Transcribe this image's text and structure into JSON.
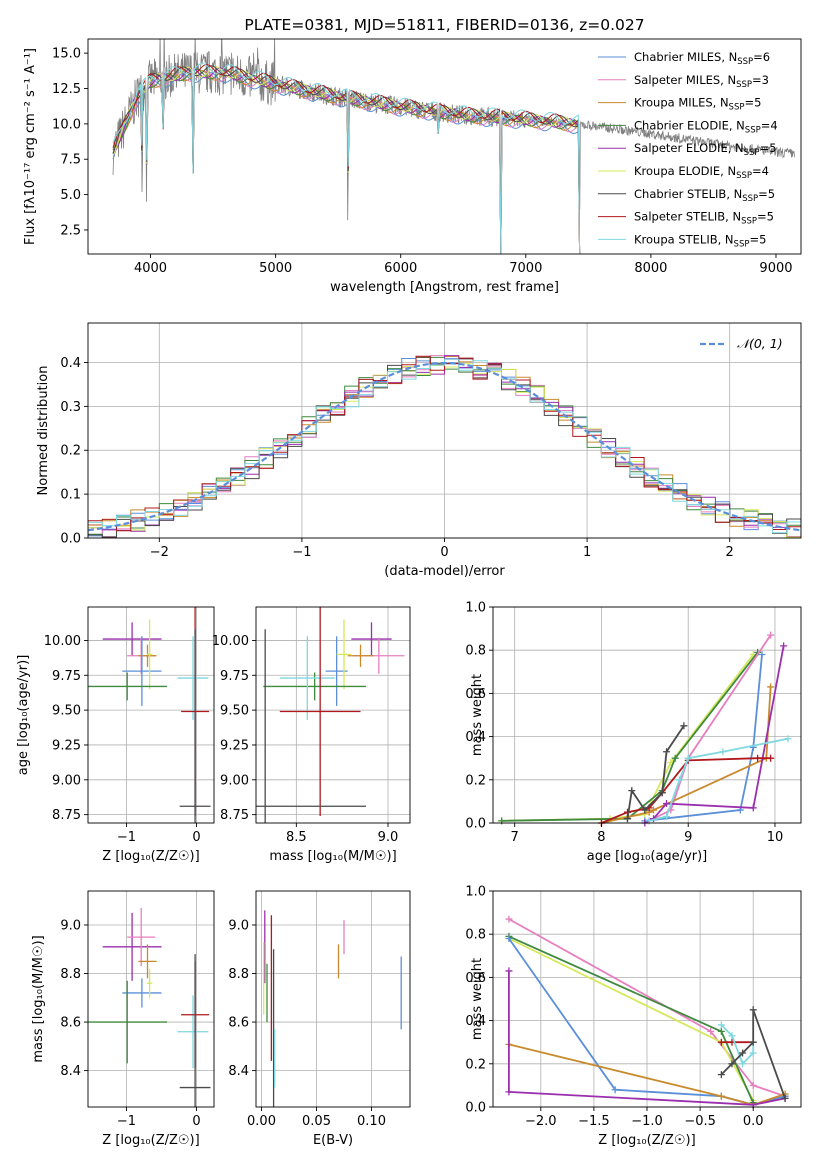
{
  "colors": {
    "Chabrier MILES": "#5b8fd9",
    "Salpeter MILES": "#e67fc0",
    "Kroupa MILES": "#c88a2c",
    "Chabrier ELODIE": "#3f8a3f",
    "Salpeter ELODIE": "#9b2fae",
    "Kroupa ELODIE": "#d6e85a",
    "Chabrier STELIB": "#4a4a4a",
    "Salpeter STELIB": "#b0181e",
    "Kroupa STELIB": "#7fd8e0",
    "observed": "#808080",
    "normal": "#5b8fd9"
  },
  "chart_data": [
    {
      "type": "line",
      "title": "PLATE=0381, MJD=51811, FIBERID=0136, z=0.027",
      "xlabel": "wavelength [Angstrom, rest frame]",
      "ylabel": "Flux [fλ10⁻¹⁷ erg cm⁻² s⁻¹ A⁻¹]",
      "xlim": [
        3500,
        9200
      ],
      "ylim": [
        0.8,
        16
      ],
      "xticks": [
        "4000",
        "5000",
        "6000",
        "7000",
        "8000",
        "9000"
      ],
      "yticks": [
        "2.5",
        "5.0",
        "7.5",
        "10.0",
        "12.5",
        "15.0"
      ],
      "legend_position": "top-right",
      "legend": [
        {
          "label": "Chabrier MILES, N",
          "sub": "SSP",
          "tail": "=6",
          "key": "Chabrier MILES"
        },
        {
          "label": "Salpeter MILES, N",
          "sub": "SSP",
          "tail": "=3",
          "key": "Salpeter MILES"
        },
        {
          "label": "Kroupa MILES, N",
          "sub": "SSP",
          "tail": "=5",
          "key": "Kroupa MILES"
        },
        {
          "label": "Chabrier ELODIE, N",
          "sub": "SSP",
          "tail": "=4",
          "key": "Chabrier ELODIE"
        },
        {
          "label": "Salpeter ELODIE, N",
          "sub": "SSP",
          "tail": "=5",
          "key": "Salpeter ELODIE"
        },
        {
          "label": "Kroupa ELODIE, N",
          "sub": "SSP",
          "tail": "=4",
          "key": "Kroupa ELODIE"
        },
        {
          "label": "Chabrier STELIB, N",
          "sub": "SSP",
          "tail": "=5",
          "key": "Chabrier STELIB"
        },
        {
          "label": "Salpeter STELIB, N",
          "sub": "SSP",
          "tail": "=5",
          "key": "Salpeter STELIB"
        },
        {
          "label": "Kroupa STELIB, N",
          "sub": "SSP",
          "tail": "=5",
          "key": "Kroupa STELIB"
        }
      ],
      "continuum": [
        [
          3700,
          8.0
        ],
        [
          3800,
          10.0
        ],
        [
          3900,
          12.0
        ],
        [
          4000,
          13.0
        ],
        [
          4300,
          13.6
        ],
        [
          4600,
          13.6
        ],
        [
          5000,
          12.8
        ],
        [
          5500,
          11.9
        ],
        [
          6000,
          11.2
        ],
        [
          6500,
          10.6
        ],
        [
          7000,
          10.3
        ],
        [
          7500,
          9.9
        ],
        [
          8000,
          9.3
        ],
        [
          8500,
          8.6
        ],
        [
          9000,
          8.0
        ],
        [
          9150,
          7.9
        ]
      ],
      "model_range": [
        3700,
        7430
      ],
      "dips": [
        {
          "x": 3933,
          "y": 4.0
        },
        {
          "x": 3968,
          "y": 4.5
        },
        {
          "x": 4101,
          "y": 9.0
        },
        {
          "x": 4340,
          "y": 6.5
        },
        {
          "x": 5577,
          "y": 1.5
        },
        {
          "x": 6300,
          "y": 9.3
        },
        {
          "x": 6800,
          "y": 0.8
        },
        {
          "x": 7430,
          "y": 0.8
        }
      ]
    },
    {
      "type": "step",
      "xlabel": "(data-model)/error",
      "ylabel": "Normed distribution",
      "xlim": [
        -2.5,
        2.5
      ],
      "ylim": [
        0,
        0.49
      ],
      "xticks": [
        "-2",
        "-1",
        "0",
        "1",
        "2"
      ],
      "yticks": [
        "0.0",
        "0.1",
        "0.2",
        "0.3",
        "0.4"
      ],
      "legend": "𝒩(0, 1)",
      "legend_position": "top-right",
      "bin_width": 0.1,
      "sigma": 1.0
    },
    {
      "type": "errorbar",
      "xlabel": "Z [log₁₀(Z/Z☉)]",
      "ylabel": "age  [log₁₀(age/yr)]",
      "xlim": [
        -1.55,
        0.25
      ],
      "ylim": [
        8.69,
        10.24
      ],
      "xticks": [
        "-1",
        "0"
      ],
      "yticks": [
        "8.75",
        "9.00",
        "9.25",
        "9.50",
        "9.75",
        "10.00"
      ],
      "points": [
        {
          "key": "Salpeter ELODIE",
          "x": -0.92,
          "xerr": 0.42,
          "y": 10.01,
          "yerr": 0.12
        },
        {
          "key": "Salpeter MILES",
          "x": -0.79,
          "xerr": 0.2,
          "y": 9.89,
          "yerr": 0.13
        },
        {
          "key": "Kroupa MILES",
          "x": -0.7,
          "xerr": 0.13,
          "y": 9.89,
          "yerr": 0.08
        },
        {
          "key": "Chabrier MILES",
          "x": -0.78,
          "xerr": 0.28,
          "y": 9.78,
          "yerr": 0.25
        },
        {
          "key": "Kroupa ELODIE",
          "x": -0.67,
          "xerr": 0.04,
          "y": 9.9,
          "yerr": 0.25
        },
        {
          "key": "Chabrier ELODIE",
          "x": -0.99,
          "xerr": 0.57,
          "y": 9.67,
          "yerr": 0.1
        },
        {
          "key": "Kroupa STELIB",
          "x": -0.05,
          "xerr": 0.22,
          "y": 9.73,
          "yerr": 0.3
        },
        {
          "key": "Salpeter STELIB",
          "x": -0.02,
          "xerr": 0.2,
          "y": 9.49,
          "yerr": 0.75
        },
        {
          "key": "Chabrier STELIB",
          "x": -0.02,
          "xerr": 0.22,
          "y": 8.81,
          "yerr": 1.27
        }
      ]
    },
    {
      "type": "errorbar",
      "xlabel": "mass [log₁₀(M/M☉)]",
      "ylabel": "",
      "xlim": [
        8.28,
        9.12
      ],
      "ylim": [
        8.69,
        10.24
      ],
      "xticks": [
        "8.5",
        "9.0"
      ],
      "yticks": [
        "8.75",
        "9.00",
        "9.25",
        "9.50",
        "9.75",
        "10.00"
      ],
      "points": [
        {
          "key": "Salpeter ELODIE",
          "x": 8.91,
          "xerr": 0.11,
          "y": 10.01,
          "yerr": 0.12
        },
        {
          "key": "Salpeter MILES",
          "x": 8.95,
          "xerr": 0.14,
          "y": 9.89,
          "yerr": 0.13
        },
        {
          "key": "Kroupa MILES",
          "x": 8.85,
          "xerr": 0.07,
          "y": 9.89,
          "yerr": 0.08
        },
        {
          "key": "Chabrier MILES",
          "x": 8.72,
          "xerr": 0.06,
          "y": 9.78,
          "yerr": 0.25
        },
        {
          "key": "Kroupa ELODIE",
          "x": 8.76,
          "xerr": 0.04,
          "y": 9.9,
          "yerr": 0.25
        },
        {
          "key": "Chabrier ELODIE",
          "x": 8.6,
          "xerr": 0.28,
          "y": 9.67,
          "yerr": 0.1
        },
        {
          "key": "Kroupa STELIB",
          "x": 8.56,
          "xerr": 0.15,
          "y": 9.73,
          "yerr": 0.3
        },
        {
          "key": "Salpeter STELIB",
          "x": 8.63,
          "xerr": 0.22,
          "y": 9.49,
          "yerr": 0.75
        },
        {
          "key": "Chabrier STELIB",
          "x": 8.33,
          "xerr": 0.55,
          "y": 8.81,
          "yerr": 1.27
        }
      ]
    },
    {
      "type": "line",
      "xlabel": "age  [log₁₀(age/yr)]",
      "ylabel": "mass weight",
      "xlim": [
        6.75,
        10.3
      ],
      "ylim": [
        0,
        1.0
      ],
      "xticks": [
        "7",
        "8",
        "9",
        "10"
      ],
      "yticks": [
        "0.0",
        "0.2",
        "0.4",
        "0.6",
        "0.8",
        "1.0"
      ],
      "series": [
        {
          "key": "Kroupa ELODIE",
          "x": [
            6.85,
            8.1,
            8.5,
            8.8,
            9.75
          ],
          "y": [
            0.01,
            0.02,
            0.04,
            0.28,
            0.78
          ]
        },
        {
          "key": "Chabrier ELODIE",
          "x": [
            6.85,
            8.3,
            8.7,
            8.85,
            9.8
          ],
          "y": [
            0.01,
            0.02,
            0.15,
            0.3,
            0.79
          ]
        },
        {
          "key": "Salpeter MILES",
          "x": [
            8.55,
            8.8,
            9.0,
            9.95
          ],
          "y": [
            0.01,
            0.06,
            0.3,
            0.87
          ]
        },
        {
          "key": "Chabrier MILES",
          "x": [
            8.5,
            9.6,
            9.75,
            9.85
          ],
          "y": [
            0.01,
            0.06,
            0.35,
            0.78
          ]
        },
        {
          "key": "Kroupa MILES",
          "x": [
            8.0,
            8.55,
            8.6,
            9.9,
            9.95
          ],
          "y": [
            0.0,
            0.05,
            0.06,
            0.3,
            0.63
          ]
        },
        {
          "key": "Salpeter ELODIE",
          "x": [
            8.5,
            8.6,
            8.75,
            9.75,
            10.1
          ],
          "y": [
            0.0,
            0.02,
            0.09,
            0.07,
            0.82
          ]
        },
        {
          "key": "Salpeter STELIB",
          "x": [
            8.0,
            8.3,
            8.55,
            8.7,
            9.0,
            9.8,
            9.95
          ],
          "y": [
            0.0,
            0.05,
            0.07,
            0.14,
            0.29,
            0.3,
            0.3
          ]
        },
        {
          "key": "Kroupa STELIB",
          "x": [
            8.55,
            8.75,
            8.9,
            9.0,
            9.4,
            10.15
          ],
          "y": [
            0.01,
            0.03,
            0.2,
            0.3,
            0.33,
            0.39
          ]
        },
        {
          "key": "Chabrier STELIB",
          "x": [
            8.3,
            8.35,
            8.5,
            8.7,
            8.75,
            8.95
          ],
          "y": [
            0.02,
            0.15,
            0.06,
            0.14,
            0.33,
            0.45
          ]
        }
      ]
    },
    {
      "type": "errorbar",
      "xlabel": "Z [log₁₀(Z/Z☉)]",
      "ylabel": "mass [log₁₀(M/M☉)]",
      "xlim": [
        -1.55,
        0.25
      ],
      "ylim": [
        8.25,
        9.14
      ],
      "xticks": [
        "-1",
        "0"
      ],
      "yticks": [
        "8.4",
        "8.6",
        "8.8",
        "9.0"
      ],
      "points": [
        {
          "key": "Salpeter ELODIE",
          "x": -0.92,
          "xerr": 0.42,
          "y": 8.91,
          "yerr": 0.14
        },
        {
          "key": "Salpeter MILES",
          "x": -0.79,
          "xerr": 0.2,
          "y": 8.95,
          "yerr": 0.12
        },
        {
          "key": "Kroupa MILES",
          "x": -0.7,
          "xerr": 0.13,
          "y": 8.85,
          "yerr": 0.07
        },
        {
          "key": "Chabrier MILES",
          "x": -0.78,
          "xerr": 0.28,
          "y": 8.72,
          "yerr": 0.06
        },
        {
          "key": "Kroupa ELODIE",
          "x": -0.67,
          "xerr": 0.04,
          "y": 8.76,
          "yerr": 0.06
        },
        {
          "key": "Chabrier ELODIE",
          "x": -0.99,
          "xerr": 0.57,
          "y": 8.6,
          "yerr": 0.17
        },
        {
          "key": "Kroupa STELIB",
          "x": -0.05,
          "xerr": 0.22,
          "y": 8.56,
          "yerr": 0.15
        },
        {
          "key": "Salpeter STELIB",
          "x": -0.02,
          "xerr": 0.2,
          "y": 8.63,
          "yerr": 0.22
        },
        {
          "key": "Chabrier STELIB",
          "x": -0.02,
          "xerr": 0.22,
          "y": 8.33,
          "yerr": 0.55
        }
      ]
    },
    {
      "type": "errorbar",
      "xlabel": "E(B-V)",
      "ylabel": "",
      "xlim": [
        -0.005,
        0.135
      ],
      "ylim": [
        8.25,
        9.14
      ],
      "xticks": [
        "0.00",
        "0.05",
        "0.10"
      ],
      "yticks": [
        "8.4",
        "8.6",
        "8.8",
        "9.0"
      ],
      "points": [
        {
          "key": "Salpeter ELODIE",
          "x": 0.003,
          "xerr": 0,
          "y": 8.91,
          "yerr": 0.15
        },
        {
          "key": "Kroupa ELODIE",
          "x": 0.002,
          "xerr": 0,
          "y": 8.78,
          "yerr": 0.15
        },
        {
          "key": "Chabrier ELODIE",
          "x": 0.005,
          "xerr": 0,
          "y": 8.72,
          "yerr": 0.12
        },
        {
          "key": "Salpeter STELIB",
          "x": 0.009,
          "xerr": 0,
          "y": 8.74,
          "yerr": 0.3
        },
        {
          "key": "Chabrier STELIB",
          "x": 0.011,
          "xerr": 0,
          "y": 8.55,
          "yerr": 0.35
        },
        {
          "key": "Kroupa STELIB",
          "x": 0.012,
          "xerr": 0,
          "y": 8.45,
          "yerr": 0.12
        },
        {
          "key": "Kroupa MILES",
          "x": 0.07,
          "xerr": 0,
          "y": 8.85,
          "yerr": 0.07
        },
        {
          "key": "Salpeter MILES",
          "x": 0.075,
          "xerr": 0,
          "y": 8.95,
          "yerr": 0.07
        },
        {
          "key": "Chabrier MILES",
          "x": 0.127,
          "xerr": 0,
          "y": 8.72,
          "yerr": 0.15
        }
      ]
    },
    {
      "type": "line",
      "xlabel": "Z [log₁₀(Z/Z☉)]",
      "ylabel": "mass weight",
      "xlim": [
        -2.45,
        0.45
      ],
      "ylim": [
        0,
        1.0
      ],
      "xticks": [
        "-2.0",
        "-1.5",
        "-1.0",
        "-0.5",
        "0.0"
      ],
      "yticks": [
        "0.0",
        "0.2",
        "0.4",
        "0.6",
        "0.8",
        "1.0"
      ],
      "series": [
        {
          "key": "Salpeter MILES",
          "x": [
            -2.3,
            -0.4,
            0.0,
            0.3
          ],
          "y": [
            0.87,
            0.35,
            0.1,
            0.05
          ]
        },
        {
          "key": "Kroupa ELODIE",
          "x": [
            -2.3,
            -0.3,
            0.0
          ],
          "y": [
            0.78,
            0.3,
            0.03
          ]
        },
        {
          "key": "Chabrier ELODIE",
          "x": [
            -2.3,
            -0.3,
            0.0
          ],
          "y": [
            0.79,
            0.35,
            0.02
          ]
        },
        {
          "key": "Chabrier MILES",
          "x": [
            -2.3,
            -1.3,
            -0.3,
            0.0,
            0.3
          ],
          "y": [
            0.78,
            0.08,
            0.05,
            0.01,
            0.05
          ]
        },
        {
          "key": "Kroupa MILES",
          "x": [
            -2.3,
            -0.3,
            0.0,
            0.3
          ],
          "y": [
            0.29,
            0.05,
            0.01,
            0.06
          ]
        },
        {
          "key": "Salpeter ELODIE",
          "x": [
            -2.3,
            -2.3,
            0.0,
            0.3
          ],
          "y": [
            0.63,
            0.07,
            0.01,
            0.04
          ]
        },
        {
          "key": "Salpeter STELIB",
          "x": [
            -0.3,
            -0.2,
            0.0
          ],
          "y": [
            0.3,
            0.3,
            0.3
          ]
        },
        {
          "key": "Kroupa STELIB",
          "x": [
            -0.3,
            -0.2,
            -0.1,
            0.0,
            0.0
          ],
          "y": [
            0.38,
            0.33,
            0.2,
            0.25,
            0.3
          ]
        },
        {
          "key": "Chabrier STELIB",
          "x": [
            -0.3,
            -0.2,
            -0.1,
            0.0,
            0.0,
            0.3
          ],
          "y": [
            0.15,
            0.2,
            0.25,
            0.3,
            0.45,
            0.04
          ]
        }
      ]
    }
  ]
}
